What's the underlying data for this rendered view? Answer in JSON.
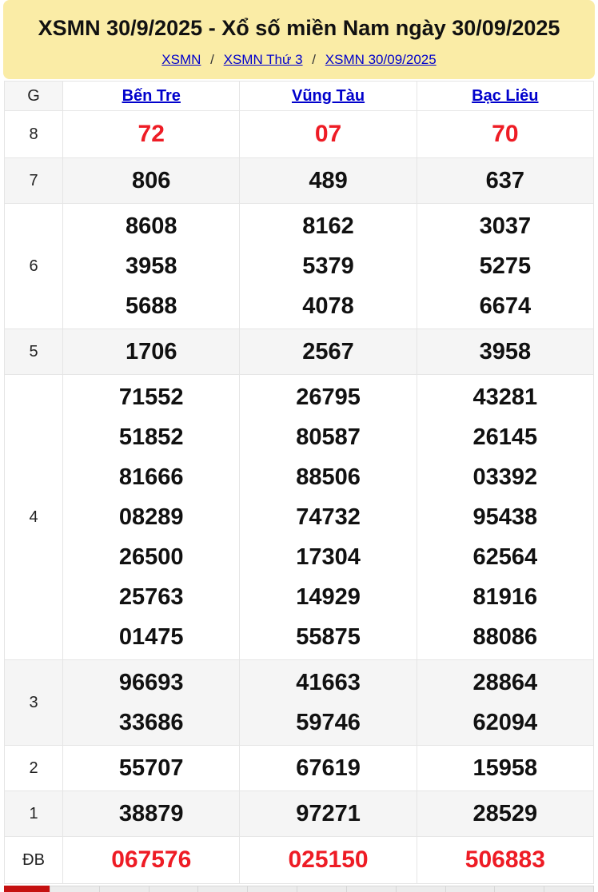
{
  "header": {
    "title": "XSMN 30/9/2025 - Xổ số miền Nam ngày 30/09/2025",
    "separator": "/",
    "breadcrumb": [
      {
        "label": "XSMN"
      },
      {
        "label": "XSMN Thứ 3"
      },
      {
        "label": "XSMN 30/09/2025"
      }
    ]
  },
  "results_table": {
    "prize_col_header": "G",
    "provinces": [
      "Bến Tre",
      "Vũng Tàu",
      "Bạc Liêu"
    ],
    "rows": [
      {
        "prize": "8",
        "highlight": true,
        "values": [
          [
            "72"
          ],
          [
            "07"
          ],
          [
            "70"
          ]
        ]
      },
      {
        "prize": "7",
        "highlight": false,
        "values": [
          [
            "806"
          ],
          [
            "489"
          ],
          [
            "637"
          ]
        ]
      },
      {
        "prize": "6",
        "highlight": false,
        "values": [
          [
            "8608",
            "3958",
            "5688"
          ],
          [
            "8162",
            "5379",
            "4078"
          ],
          [
            "3037",
            "5275",
            "6674"
          ]
        ]
      },
      {
        "prize": "5",
        "highlight": false,
        "values": [
          [
            "1706"
          ],
          [
            "2567"
          ],
          [
            "3958"
          ]
        ]
      },
      {
        "prize": "4",
        "highlight": false,
        "values": [
          [
            "71552",
            "51852",
            "81666",
            "08289",
            "26500",
            "25763",
            "01475"
          ],
          [
            "26795",
            "80587",
            "88506",
            "74732",
            "17304",
            "14929",
            "55875"
          ],
          [
            "43281",
            "26145",
            "03392",
            "95438",
            "62564",
            "81916",
            "88086"
          ]
        ]
      },
      {
        "prize": "3",
        "highlight": false,
        "values": [
          [
            "96693",
            "33686"
          ],
          [
            "41663",
            "59746"
          ],
          [
            "28864",
            "62094"
          ]
        ]
      },
      {
        "prize": "2",
        "highlight": false,
        "values": [
          [
            "55707"
          ],
          [
            "67619"
          ],
          [
            "15958"
          ]
        ]
      },
      {
        "prize": "1",
        "highlight": false,
        "values": [
          [
            "38879"
          ],
          [
            "97271"
          ],
          [
            "28529"
          ]
        ]
      },
      {
        "prize": "ĐB",
        "highlight": true,
        "values": [
          [
            "067576"
          ],
          [
            "025150"
          ],
          [
            "506883"
          ]
        ]
      }
    ]
  },
  "colors": {
    "banner_yellow": "#FAECA6",
    "link_blue": "#0000CC",
    "number_red": "#EE1C25",
    "stripe_gray": "#F5F5F5",
    "border_gray": "#E5E5E5",
    "next_table_red": "#C51111"
  }
}
